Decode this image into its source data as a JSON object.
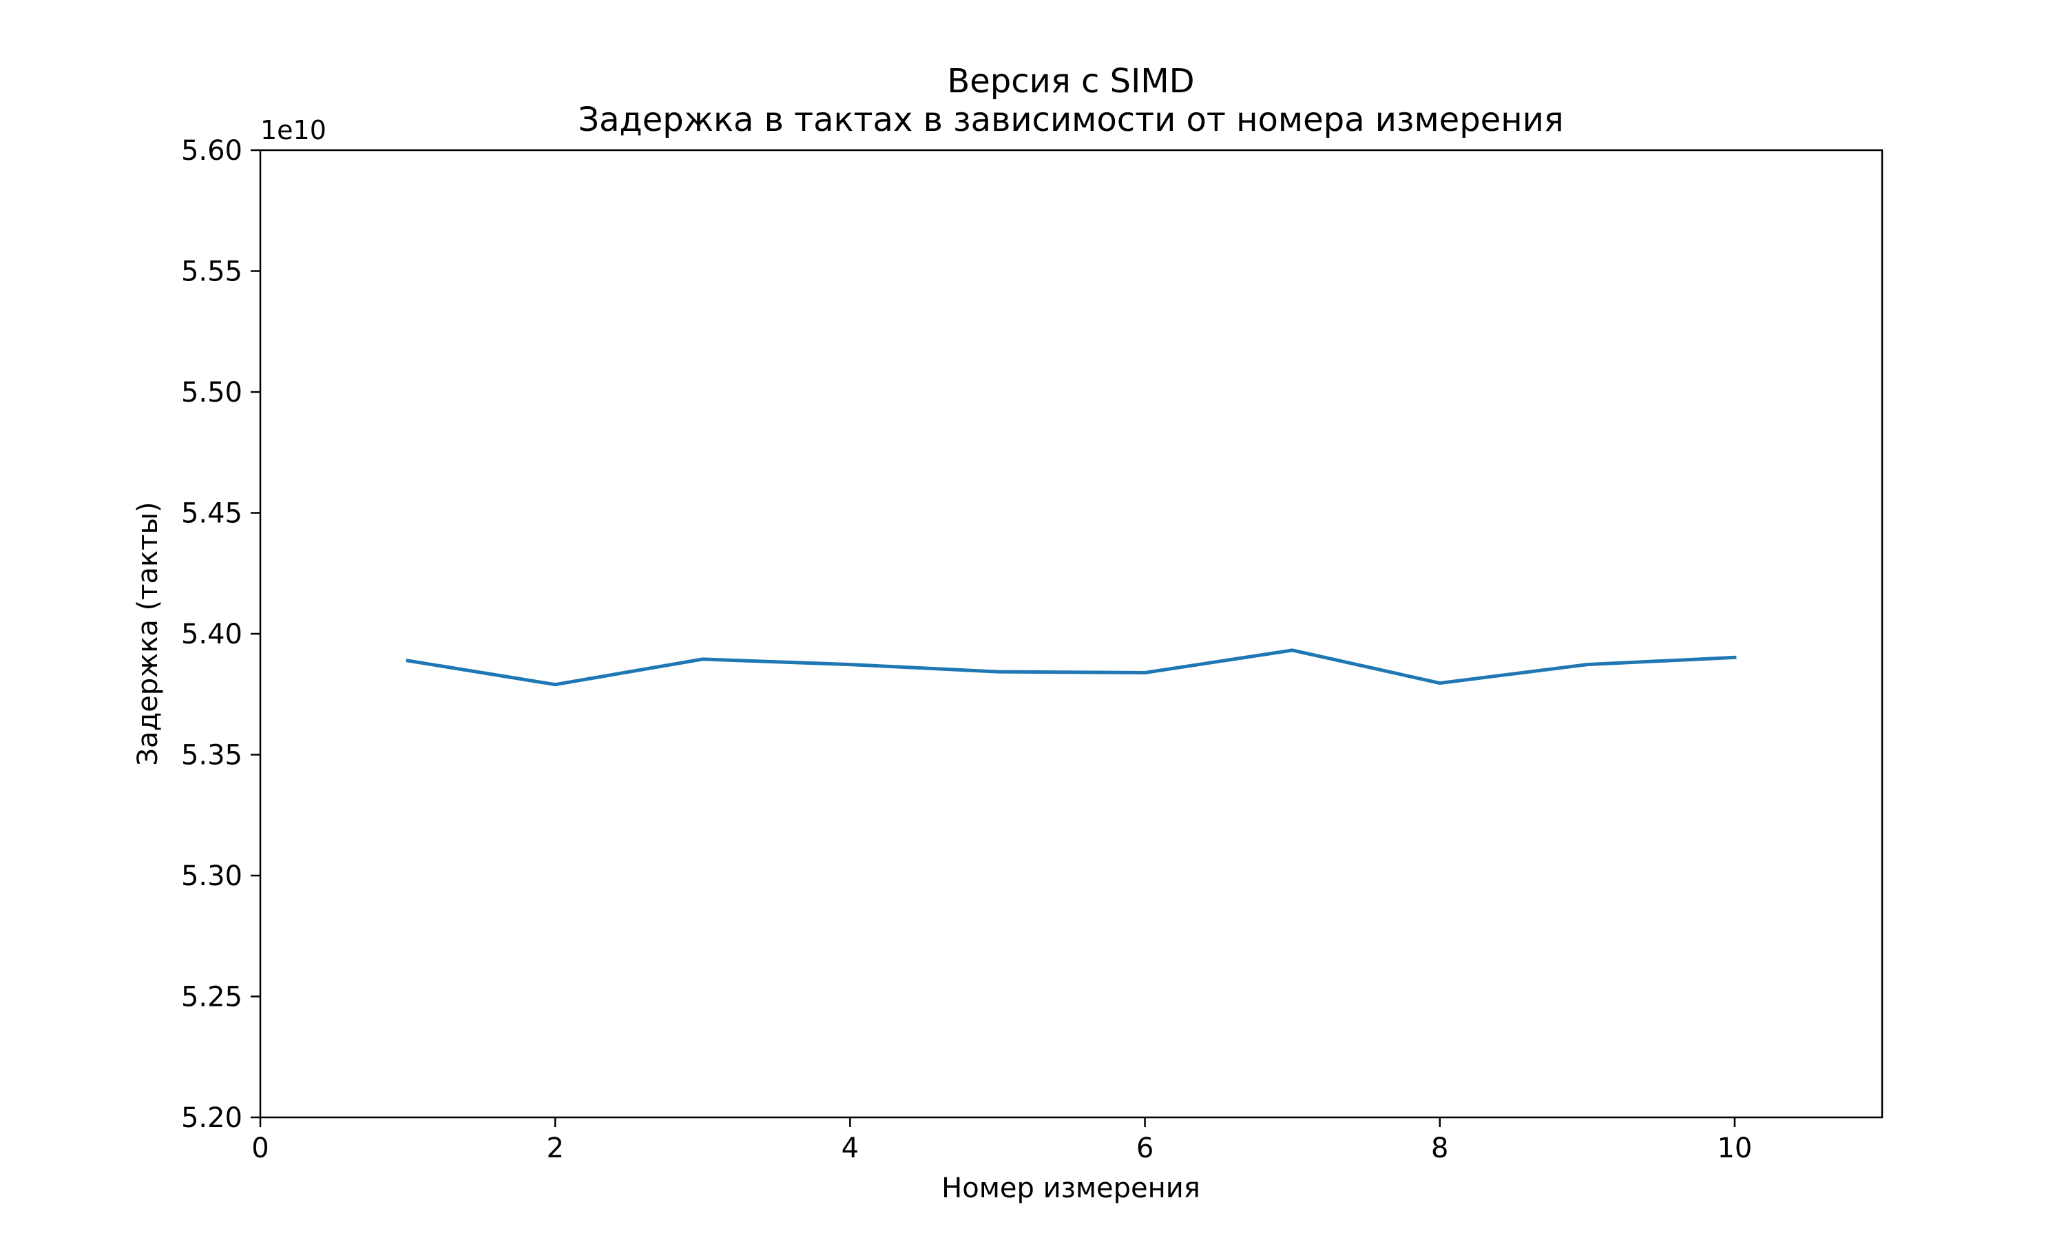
{
  "chart_data": {
    "type": "line",
    "title": "Версия с SIMD",
    "subtitle": "Задержка в тактах в зависимости от номера измерения",
    "xlabel": "Номер измерения",
    "ylabel": "Задержка (такты)",
    "y_offset_label": "1e10",
    "xlim": [
      0,
      11
    ],
    "ylim": [
      52000000000.0,
      56000000000.0
    ],
    "x_ticks": [
      0,
      2,
      4,
      6,
      8,
      10
    ],
    "x_tick_labels": [
      "0",
      "2",
      "4",
      "6",
      "8",
      "10"
    ],
    "y_ticks": [
      52000000000.0,
      52500000000.0,
      53000000000.0,
      53500000000.0,
      54000000000.0,
      54500000000.0,
      55000000000.0,
      55500000000.0,
      56000000000.0
    ],
    "y_tick_labels": [
      "5.20",
      "5.25",
      "5.30",
      "5.35",
      "5.40",
      "5.45",
      "5.50",
      "5.55",
      "5.60"
    ],
    "grid": false,
    "legend": false,
    "series": [
      {
        "color": "#1f77b4",
        "x": [
          1,
          2,
          3,
          4,
          5,
          6,
          7,
          8,
          9,
          10
        ],
        "y": [
          53889000000.0,
          53790000000.0,
          53895000000.0,
          53873000000.0,
          53843000000.0,
          53839000000.0,
          53932000000.0,
          53796000000.0,
          53873000000.0,
          53902000000.0
        ]
      }
    ]
  }
}
